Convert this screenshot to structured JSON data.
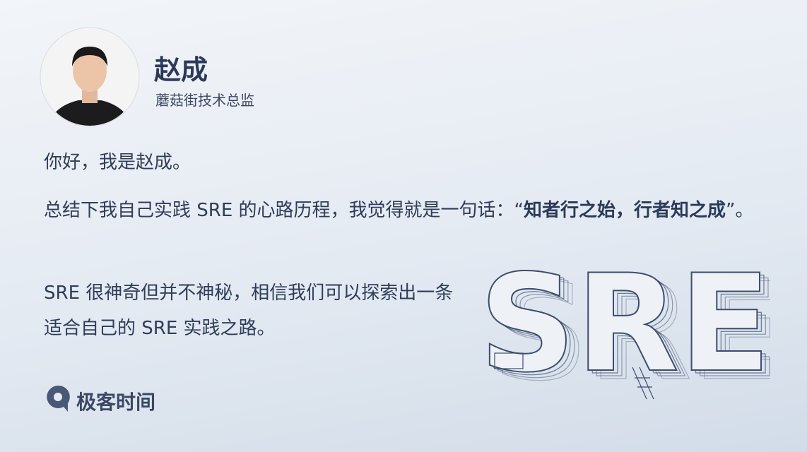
{
  "author": {
    "name": "赵成",
    "title": "蘑菇街技术总监"
  },
  "paragraphs": [
    {
      "text": "你好，我是赵成。"
    },
    {
      "before": "总结下我自己实践 SRE 的心路历程，我觉得就是一句话：“",
      "emphasis": "知者行之始，行者知之成",
      "after": "”。"
    },
    {
      "text": "SRE 很神奇但并不神秘，相信我们可以探索出一条适合自己的 SRE 实践之路。"
    }
  ],
  "illustration": {
    "text": "SRE"
  },
  "brand": {
    "name": "极客时间"
  }
}
